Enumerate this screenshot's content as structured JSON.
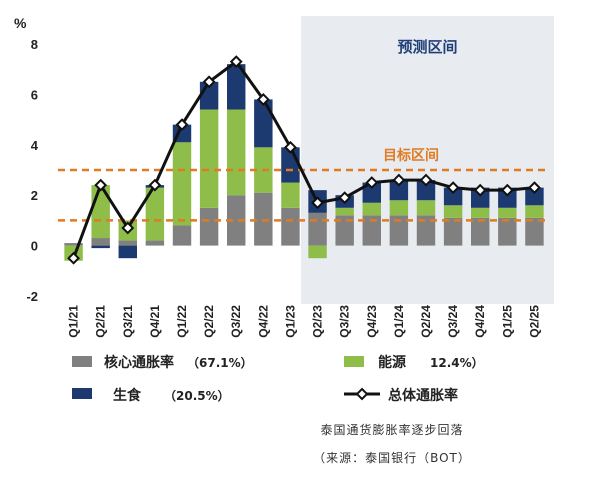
{
  "chart_data": {
    "type": "bar",
    "stacked": true,
    "unit_label": "%",
    "categories": [
      "Q1/21",
      "Q2/21",
      "Q3/21",
      "Q4/21",
      "Q1/22",
      "Q2/22",
      "Q3/22",
      "Q4/22",
      "Q1/23",
      "Q2/23",
      "Q3/23",
      "Q4/23",
      "Q1/24",
      "Q2/24",
      "Q3/24",
      "Q4/24",
      "Q1/25",
      "Q2/25"
    ],
    "ylim": [
      -2,
      8
    ],
    "yticks": [
      -2,
      0,
      2,
      4,
      6,
      8
    ],
    "series": [
      {
        "name": "核心通胀率",
        "share": "（67.1%）",
        "color": "#808080",
        "values": [
          0.1,
          0.3,
          0.2,
          0.2,
          0.8,
          1.5,
          2.0,
          2.1,
          1.5,
          1.3,
          1.2,
          1.2,
          1.2,
          1.2,
          1.1,
          1.1,
          1.1,
          1.1
        ]
      },
      {
        "name": "能源",
        "share": "12.4%）",
        "color": "#8fbd4a",
        "values": [
          -0.6,
          2.1,
          0.8,
          2.1,
          3.3,
          3.9,
          3.4,
          1.8,
          1.0,
          -0.5,
          0.3,
          0.5,
          0.6,
          0.6,
          0.5,
          0.4,
          0.4,
          0.5
        ]
      },
      {
        "name": "生食",
        "share": "（20.5%）",
        "color": "#1c3a70",
        "values": [
          0.0,
          -0.1,
          -0.5,
          0.1,
          0.7,
          1.1,
          1.8,
          1.9,
          1.4,
          0.9,
          0.5,
          0.8,
          0.8,
          0.8,
          0.7,
          0.8,
          0.8,
          0.7
        ]
      }
    ],
    "line": {
      "name": "总体通胀率",
      "color": "#111111",
      "values": [
        -0.5,
        2.4,
        0.7,
        2.4,
        4.8,
        6.5,
        7.3,
        5.8,
        3.9,
        1.7,
        1.9,
        2.5,
        2.6,
        2.6,
        2.3,
        2.2,
        2.2,
        2.3
      ]
    },
    "target_band": {
      "label": "目标区间",
      "low": 1,
      "high": 3,
      "color": "#e07b22"
    },
    "forecast_region": {
      "label": "预测区间",
      "start_category": "Q2/23",
      "color": "#e8ebf0"
    }
  },
  "caption": {
    "title": "泰国通货膨胀率逐步回落",
    "source": "（来源：泰国银行（BOT）"
  }
}
